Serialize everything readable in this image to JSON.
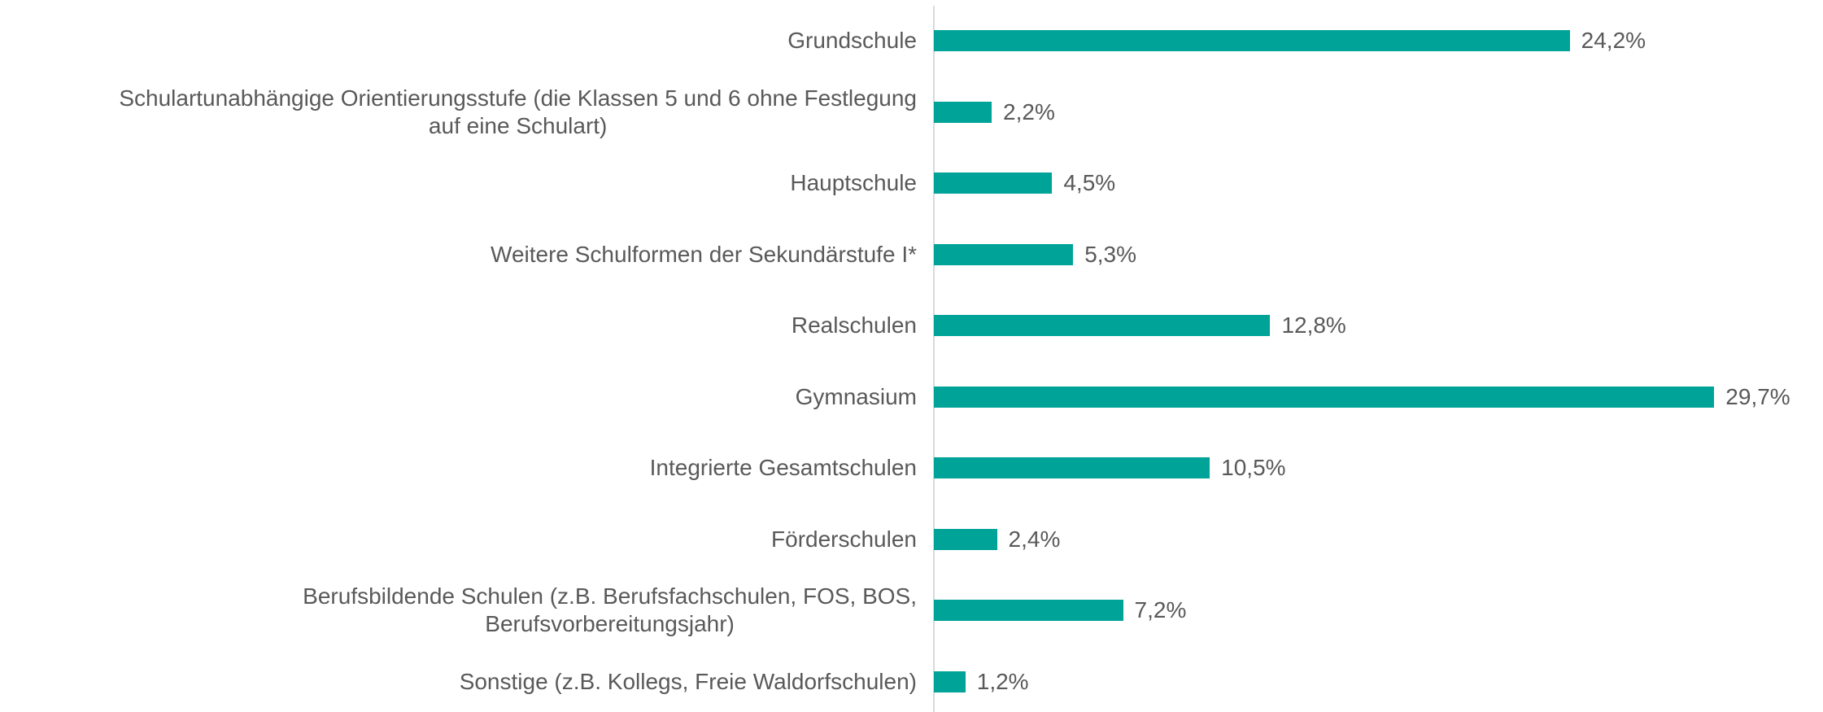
{
  "chart_data": {
    "type": "bar",
    "orientation": "horizontal",
    "color": "#00a398",
    "categories": [
      "Grundschule",
      "Schulartunabhängige Orientierungsstufe (die Klassen 5 und 6 ohne Festlegung\nauf eine Schulart)",
      "Hauptschule",
      "Weitere Schulformen der Sekundärstufe I*",
      "Realschulen",
      "Gymnasium",
      "Integrierte Gesamtschulen",
      "Förderschulen",
      "Berufsbildende Schulen (z.B. Berufsfachschulen, FOS, BOS,\nBerufsvorbereitungsjahr)",
      "Sonstige (z.B. Kollegs, Freie Waldorfschulen)"
    ],
    "values": [
      24.2,
      2.2,
      4.5,
      5.3,
      12.8,
      29.7,
      10.5,
      2.4,
      7.2,
      1.2
    ],
    "value_labels": [
      "24,2%",
      "2,2%",
      "4,5%",
      "5,3%",
      "12,8%",
      "29,7%",
      "10,5%",
      "2,4%",
      "7,2%",
      "1,2%"
    ]
  }
}
